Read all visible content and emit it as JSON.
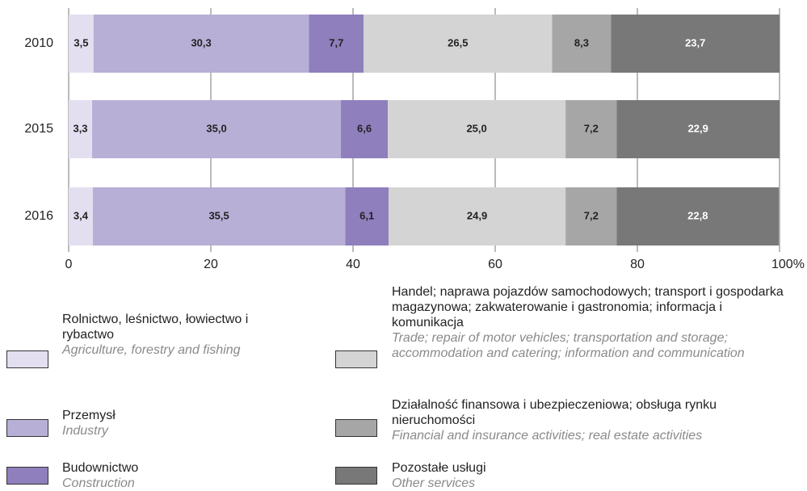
{
  "chart_data": {
    "type": "stacked_bar",
    "orientation": "horizontal",
    "categories": [
      "2010",
      "2015",
      "2016"
    ],
    "series": [
      {
        "name": "Rolnictwo, leśnictwo, łowiectwo i rybactwo",
        "name_en": "Agriculture, forestry and fishing",
        "color": "#e3dff0",
        "label_color": "#222222",
        "values": [
          3.5,
          3.3,
          3.4
        ],
        "value_labels": [
          "3,5",
          "3,3",
          "3,4"
        ]
      },
      {
        "name": "Przemysł",
        "name_en": "Industry",
        "color": "#b8afd6",
        "label_color": "#222222",
        "values": [
          30.3,
          35.0,
          35.5
        ],
        "value_labels": [
          "30,3",
          "35,0",
          "35,5"
        ]
      },
      {
        "name": "Budownictwo",
        "name_en": "Construction",
        "color": "#8f7fbd",
        "label_color": "#222222",
        "values": [
          7.7,
          6.6,
          6.1
        ],
        "value_labels": [
          "7,7",
          "6,6",
          "6,1"
        ]
      },
      {
        "name": "Handel; naprawa pojazdów samochodowych; transport i gospodarka magazynowa; zakwaterowanie i gastronomia; informacja i komunikacja",
        "name_en": "Trade; repair of motor vehicles; transportation and storage; accommodation and catering; information and communication",
        "color": "#d4d4d4",
        "label_color": "#222222",
        "values": [
          26.5,
          25.0,
          24.9
        ],
        "value_labels": [
          "26,5",
          "25,0",
          "24,9"
        ]
      },
      {
        "name": "Działalność finansowa i ubezpieczeniowa; obsługa rynku nieruchomości",
        "name_en": "Financial and insurance activities; real estate activities",
        "color": "#a6a6a6",
        "label_color": "#222222",
        "values": [
          8.3,
          7.2,
          7.2
        ],
        "value_labels": [
          "8,3",
          "7,2",
          "7,2"
        ]
      },
      {
        "name": "Pozostałe usługi",
        "name_en": "Other services",
        "color": "#787878",
        "label_color": "#ffffff",
        "values": [
          23.7,
          22.9,
          22.8
        ],
        "value_labels": [
          "23,7",
          "22,9",
          "22,8"
        ]
      }
    ],
    "xlim": [
      0,
      100
    ],
    "xticks": [
      0,
      20,
      40,
      60,
      80,
      {
        "value": 100,
        "label": "100%"
      }
    ],
    "grid": true
  }
}
